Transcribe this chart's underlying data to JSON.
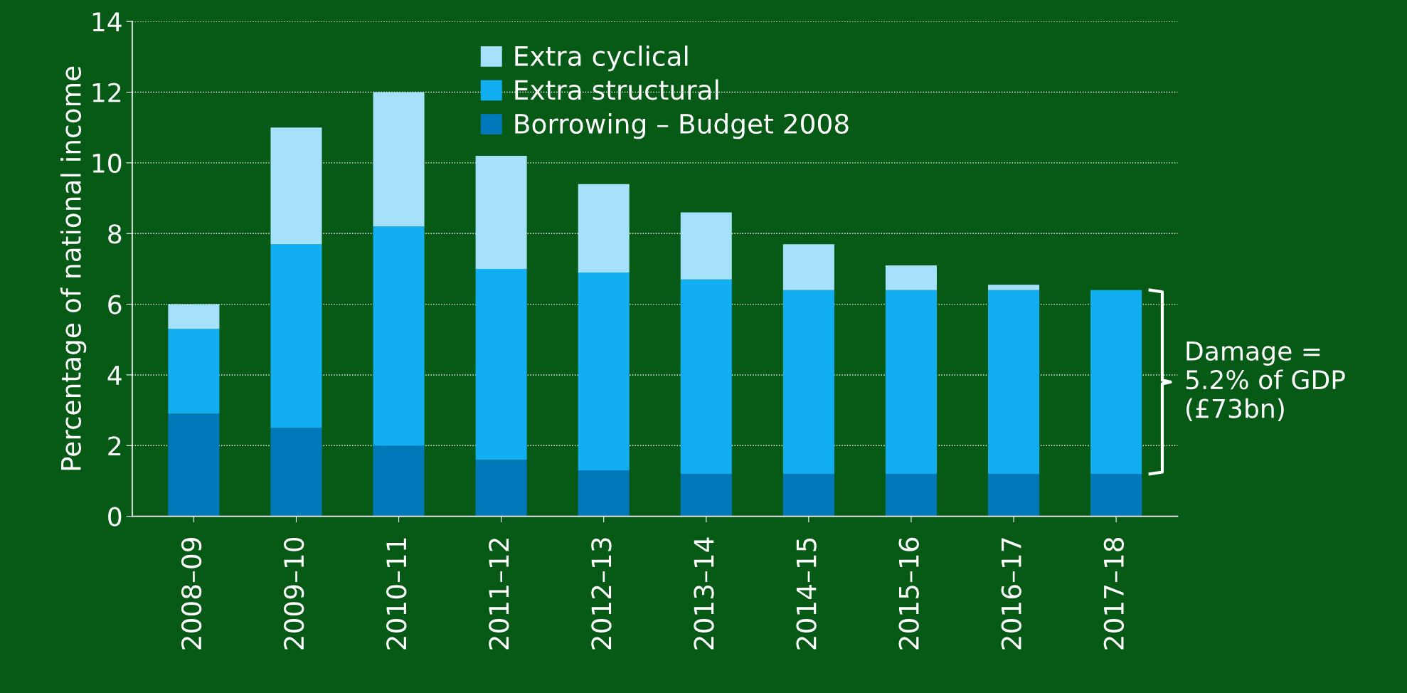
{
  "chart_data": {
    "type": "bar",
    "stacked": true,
    "ylabel": "Percentage of national income",
    "categories": [
      "2008–09",
      "2009–10",
      "2010–11",
      "2011–12",
      "2012–13",
      "2013–14",
      "2014–15",
      "2015–16",
      "2016–17",
      "2017–18"
    ],
    "series": [
      {
        "name": "Borrowing – Budget 2008",
        "color": "#0079bb",
        "values": [
          2.9,
          2.5,
          2.0,
          1.6,
          1.3,
          1.2,
          1.2,
          1.2,
          1.2,
          1.2
        ]
      },
      {
        "name": "Extra structural",
        "color": "#12aef2",
        "values": [
          2.4,
          5.2,
          6.2,
          5.4,
          5.6,
          5.5,
          5.2,
          5.2,
          5.2,
          5.2
        ]
      },
      {
        "name": "Extra cyclical",
        "color": "#a6e1fb",
        "values": [
          0.7,
          3.3,
          3.8,
          3.2,
          2.5,
          1.9,
          1.3,
          0.7,
          0.15,
          0
        ]
      }
    ],
    "ylim": [
      0,
      14
    ],
    "yticks": [
      0,
      2,
      4,
      6,
      8,
      10,
      12,
      14
    ],
    "grid": "y",
    "legend": "top",
    "annotations": [
      "Damage =\n5.2% of GDP\n(£73bn)"
    ]
  }
}
